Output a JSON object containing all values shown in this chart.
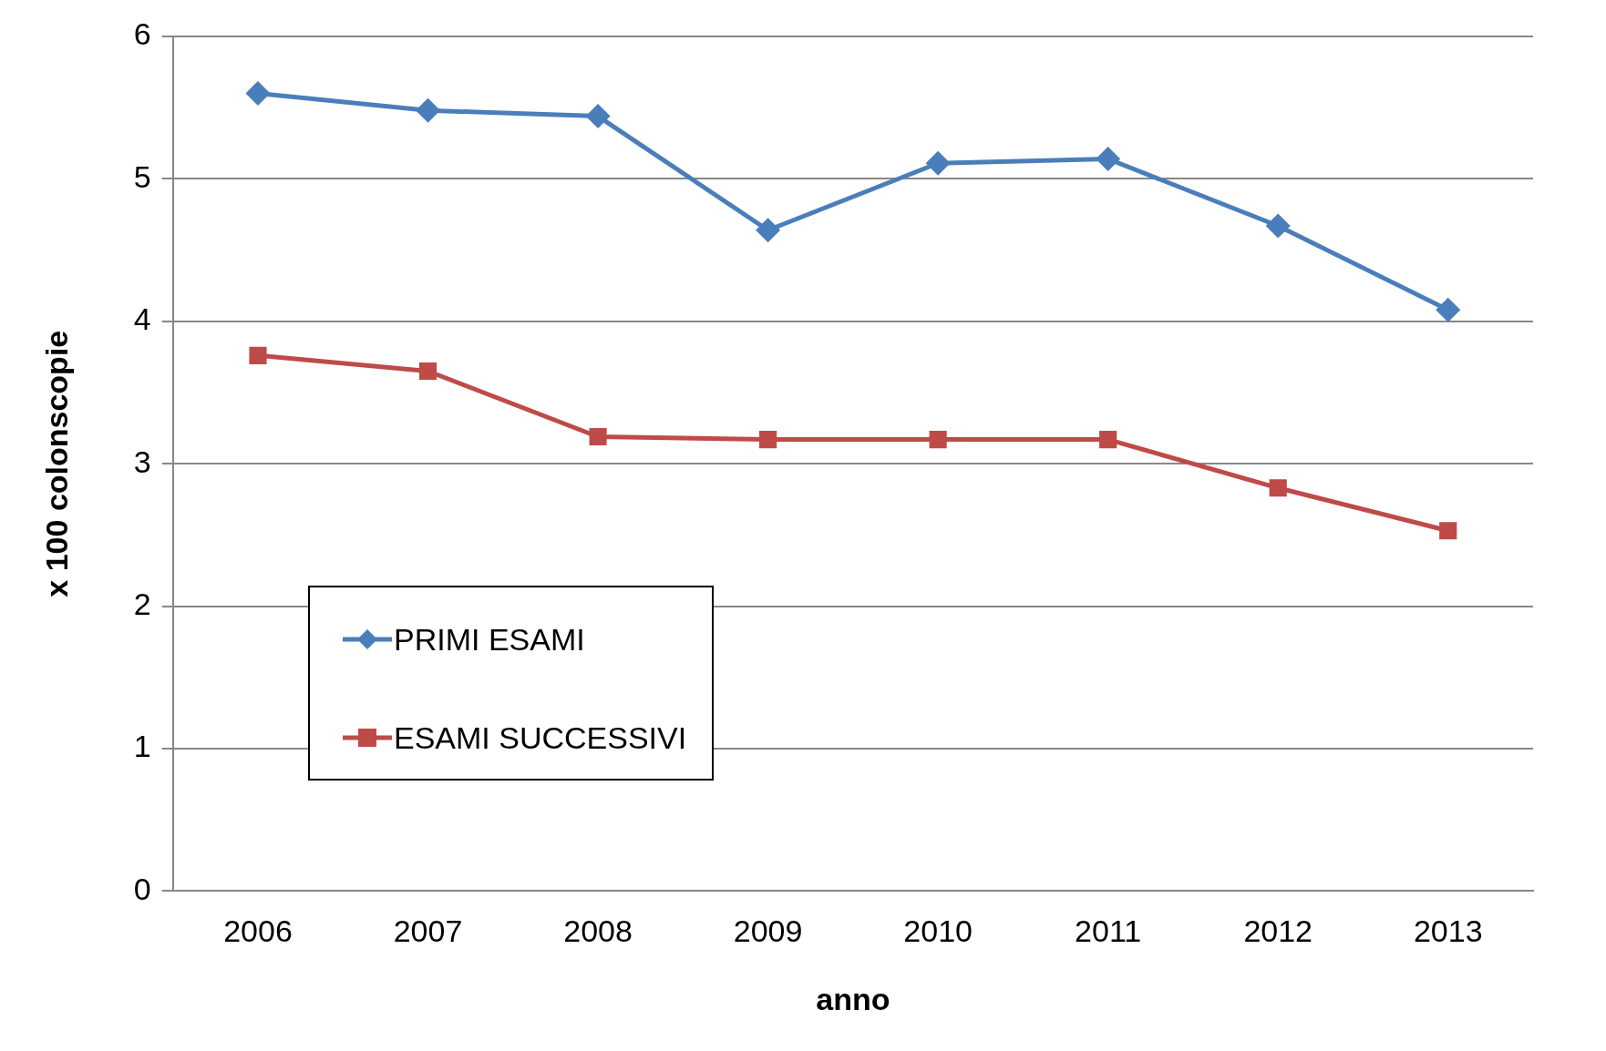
{
  "chart_data": {
    "type": "line",
    "xlabel": "anno",
    "ylabel": "x 100 colonscopie",
    "categories": [
      "2006",
      "2007",
      "2008",
      "2009",
      "2010",
      "2011",
      "2012",
      "2013"
    ],
    "series": [
      {
        "name": "PRIMI ESAMI",
        "color": "#4a7ebb",
        "marker": "diamond",
        "values": [
          5.6,
          5.48,
          5.44,
          4.64,
          5.11,
          5.14,
          4.67,
          4.08
        ]
      },
      {
        "name": "ESAMI SUCCESSIVI",
        "color": "#be4b48",
        "marker": "square",
        "values": [
          3.76,
          3.65,
          3.19,
          3.17,
          3.17,
          3.17,
          2.83,
          2.53
        ]
      }
    ],
    "ylim": [
      0,
      6
    ],
    "yticks": [
      0,
      1,
      2,
      3,
      4,
      5,
      6
    ],
    "grid": "y",
    "legend": "left"
  }
}
